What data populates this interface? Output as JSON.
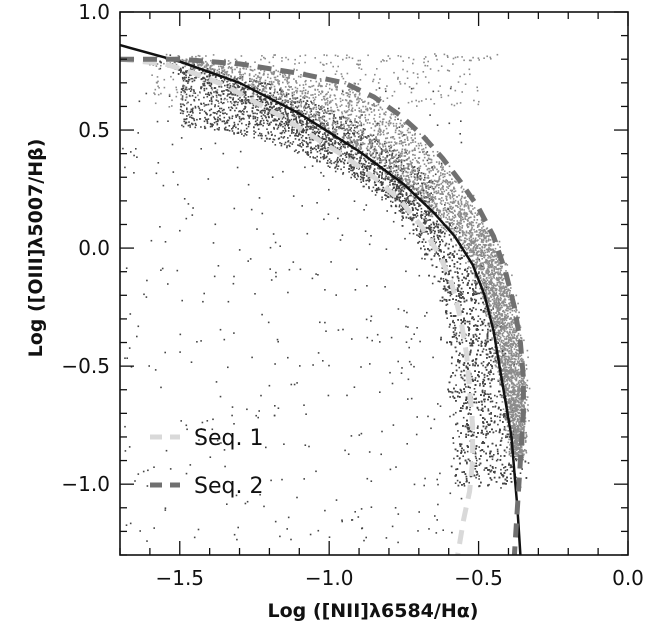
{
  "chart_data": {
    "type": "scatter",
    "title": "",
    "xlabel": "Log ([NII]λ6584/Hα)",
    "ylabel": "Log ([OIII]λ5007/Hβ)",
    "xlim": [
      -1.7,
      0.0
    ],
    "ylim": [
      -1.3,
      1.0
    ],
    "x_ticks": [
      -1.5,
      -1.0,
      -0.5,
      0.0
    ],
    "x_tick_labels": [
      "−1.5",
      "−1.0",
      "−0.5",
      "0.0"
    ],
    "y_ticks": [
      -1.0,
      -0.5,
      0.0,
      0.5,
      1.0
    ],
    "y_tick_labels": [
      "−1.0",
      "−0.5",
      "0.0",
      "0.5",
      "1.0"
    ],
    "grid": false,
    "legend_position": "bottom-left",
    "legend": [
      {
        "label": "Seq. 1",
        "color": "#d9d9d9",
        "style": "dashed"
      },
      {
        "label": "Seq. 2",
        "color": "#707070",
        "style": "dashed"
      }
    ],
    "point_colors": {
      "dark_cloud": "#454545",
      "light_cloud": "#8c8c8c"
    },
    "series": [
      {
        "kind": "curve",
        "color": "#111111",
        "style": "solid",
        "x": [
          -1.7,
          -1.5,
          -1.3,
          -1.1,
          -0.9,
          -0.75,
          -0.65,
          -0.58,
          -0.52,
          -0.48,
          -0.45,
          -0.43,
          -0.41,
          -0.39,
          -0.38,
          -0.37,
          -0.36
        ],
        "y": [
          0.86,
          0.79,
          0.7,
          0.57,
          0.41,
          0.27,
          0.15,
          0.05,
          -0.07,
          -0.2,
          -0.35,
          -0.5,
          -0.65,
          -0.8,
          -0.95,
          -1.1,
          -1.3
        ]
      },
      {
        "kind": "curve",
        "color": "#d9d9d9",
        "style": "dashed",
        "x": [
          -1.7,
          -1.55,
          -1.45,
          -1.35,
          -1.25,
          -1.15,
          -1.05,
          -0.95,
          -0.85,
          -0.76,
          -0.69,
          -0.63,
          -0.59,
          -0.56,
          -0.54,
          -0.53,
          -0.52,
          -0.52,
          -0.53,
          -0.55,
          -0.57
        ],
        "y": [
          0.8,
          0.78,
          0.74,
          0.69,
          0.62,
          0.55,
          0.47,
          0.39,
          0.3,
          0.2,
          0.09,
          -0.03,
          -0.15,
          -0.3,
          -0.45,
          -0.6,
          -0.75,
          -0.9,
          -1.03,
          -1.15,
          -1.3
        ]
      },
      {
        "kind": "curve",
        "color": "#707070",
        "style": "dashed",
        "x": [
          -1.7,
          -1.5,
          -1.3,
          -1.1,
          -0.95,
          -0.85,
          -0.76,
          -0.69,
          -0.62,
          -0.56,
          -0.5,
          -0.45,
          -0.41,
          -0.38,
          -0.36,
          -0.35,
          -0.35,
          -0.36,
          -0.37,
          -0.38
        ],
        "y": [
          0.8,
          0.8,
          0.78,
          0.74,
          0.7,
          0.64,
          0.56,
          0.48,
          0.38,
          0.28,
          0.17,
          0.05,
          -0.1,
          -0.25,
          -0.4,
          -0.55,
          -0.7,
          -0.9,
          -1.1,
          -1.3
        ]
      }
    ]
  }
}
